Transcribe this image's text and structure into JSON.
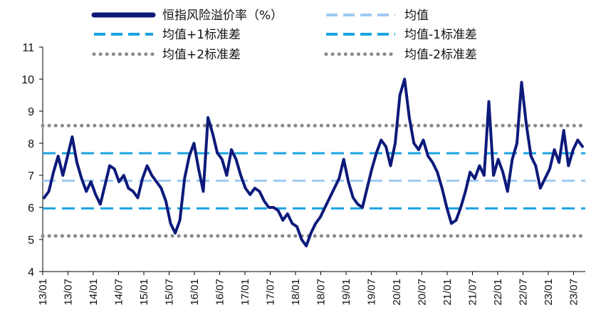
{
  "chart_data": {
    "type": "line",
    "ylim": [
      4,
      11
    ],
    "y_ticks": [
      "4",
      "5",
      "6",
      "7",
      "8",
      "9",
      "10",
      "11"
    ],
    "x_ticks": [
      "13/01",
      "13/07",
      "14/01",
      "14/07",
      "15/01",
      "15/07",
      "16/01",
      "16/07",
      "17/01",
      "17/07",
      "18/01",
      "18/07",
      "19/01",
      "19/07",
      "20/01",
      "20/07",
      "21/01",
      "21/07",
      "22/01",
      "22/07",
      "23/01",
      "23/07"
    ],
    "grid": false,
    "legend_position": "top",
    "series": [
      {
        "name": "恒指风险溢价率（%）",
        "color": "#0d1a7a",
        "style": "solid",
        "x_start": "2013-01",
        "x_end": "2023-10",
        "values": [
          6.3,
          6.5,
          7.1,
          7.6,
          7.0,
          7.6,
          8.2,
          7.4,
          6.9,
          6.5,
          6.8,
          6.4,
          6.1,
          6.7,
          7.3,
          7.2,
          6.8,
          7.0,
          6.6,
          6.5,
          6.3,
          6.9,
          7.3,
          7.0,
          6.8,
          6.6,
          6.2,
          5.5,
          5.2,
          5.6,
          6.9,
          7.6,
          8.0,
          7.2,
          6.5,
          8.8,
          8.3,
          7.7,
          7.5,
          7.0,
          7.8,
          7.5,
          7.0,
          6.6,
          6.4,
          6.6,
          6.5,
          6.2,
          6.0,
          6.0,
          5.9,
          5.6,
          5.8,
          5.5,
          5.4,
          5.0,
          4.8,
          5.2,
          5.5,
          5.7,
          6.0,
          6.3,
          6.6,
          6.9,
          7.5,
          6.8,
          6.3,
          6.1,
          6.0,
          6.6,
          7.2,
          7.7,
          8.1,
          7.9,
          7.3,
          8.0,
          9.5,
          10.0,
          8.8,
          8.0,
          7.8,
          8.1,
          7.6,
          7.4,
          7.1,
          6.6,
          6.0,
          5.5,
          5.6,
          6.0,
          6.5,
          7.1,
          6.9,
          7.3,
          7.0,
          9.3,
          7.0,
          7.5,
          7.1,
          6.5,
          7.5,
          8.0,
          9.9,
          8.6,
          7.6,
          7.3,
          6.6,
          6.9,
          7.2,
          7.8,
          7.4,
          8.4,
          7.3,
          7.8,
          8.1,
          7.9
        ]
      },
      {
        "name": "均值",
        "color": "#9fcaf2",
        "style": "dashed",
        "value": 6.83
      },
      {
        "name": "均值+1标准差",
        "color": "#1aa3e0",
        "style": "dashed",
        "value": 7.69
      },
      {
        "name": "均值-1标准差",
        "color": "#1aa3e0",
        "style": "dashed",
        "value": 5.97
      },
      {
        "name": "均值+2标准差",
        "color": "#8a8a8a",
        "style": "dotted",
        "value": 8.55
      },
      {
        "name": "均值-2标准差",
        "color": "#8a8a8a",
        "style": "dotted",
        "value": 5.11
      }
    ]
  }
}
